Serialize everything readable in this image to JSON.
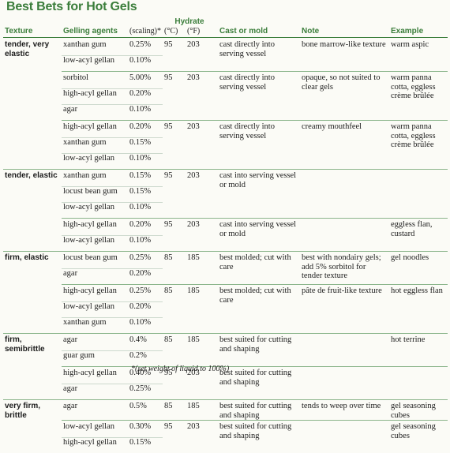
{
  "title": "Best Bets for Hot Gels",
  "headers": {
    "hydrate": "Hydrate",
    "texture": "Texture",
    "gelling": "Gelling agents",
    "scaling": "(scaling)*",
    "c": "(°C)",
    "f": "(°F)",
    "cast": "Cast or mold",
    "note": "Note",
    "example": "Example"
  },
  "groups": [
    {
      "texture": "tender, very elastic",
      "rows": [
        [
          "xanthan gum",
          "0.25%"
        ],
        [
          "low-acyl gellan",
          "0.10%"
        ]
      ],
      "c": "95",
      "f": "203",
      "cast": "cast directly into serving vessel",
      "note": "bone marrow-like texture",
      "example": "warm aspic"
    },
    {
      "texture": "",
      "rows": [
        [
          "sorbitol",
          "5.00%"
        ],
        [
          "high-acyl gellan",
          "0.20%"
        ],
        [
          "agar",
          "0.10%"
        ]
      ],
      "c": "95",
      "f": "203",
      "cast": "cast directly into serving vessel",
      "note": "opaque, so not suited to clear gels",
      "example": "warm panna cotta, eggless crème brûlée"
    },
    {
      "texture": "",
      "rows": [
        [
          "high-acyl gellan",
          "0.20%"
        ],
        [
          "xanthan gum",
          "0.15%"
        ],
        [
          "low-acyl gellan",
          "0.10%"
        ]
      ],
      "c": "95",
      "f": "203",
      "cast": "cast directly into serving vessel",
      "note": "creamy mouthfeel",
      "example": "warm panna cotta, eggless crème brûlée"
    },
    {
      "texture": "tender, elastic",
      "rows": [
        [
          "xanthan gum",
          "0.15%"
        ],
        [
          "locust bean gum",
          "0.15%"
        ],
        [
          "low-acyl gellan",
          "0.10%"
        ]
      ],
      "c": "95",
      "f": "203",
      "cast": "cast into serving vessel or mold",
      "note": "",
      "example": ""
    },
    {
      "texture": "",
      "rows": [
        [
          "high-acyl gellan",
          "0.20%"
        ],
        [
          "low-acyl gellan",
          "0.10%"
        ]
      ],
      "c": "95",
      "f": "203",
      "cast": "cast into serving vessel or mold",
      "note": "",
      "example": "eggless flan, custard"
    },
    {
      "texture": "firm, elastic",
      "rows": [
        [
          "locust bean gum",
          "0.25%"
        ],
        [
          "agar",
          "0.20%"
        ]
      ],
      "c": "85",
      "f": "185",
      "cast": "best molded; cut with care",
      "note": "best with nondairy gels; add 5% sorbitol for tender texture",
      "example": "gel noodles"
    },
    {
      "texture": "",
      "rows": [
        [
          "high-acyl gellan",
          "0.25%"
        ],
        [
          "low-acyl gellan",
          "0.20%"
        ],
        [
          "xanthan gum",
          "0.10%"
        ]
      ],
      "c": "85",
      "f": "185",
      "cast": "best molded; cut with care",
      "note": "pâte de fruit-like texture",
      "example": "hot eggless flan"
    },
    {
      "texture": "firm, semibrittle",
      "rows": [
        [
          "agar",
          "0.4%"
        ],
        [
          "guar gum",
          "0.2%"
        ]
      ],
      "c": "85",
      "f": "185",
      "cast": "best suited for cutting and shaping",
      "note": "",
      "example": "hot terrine"
    },
    {
      "texture": "",
      "rows": [
        [
          "high-acyl gellan",
          "0.40%"
        ],
        [
          "agar",
          "0.25%"
        ]
      ],
      "c": "95",
      "f": "203",
      "cast": "best suited for cutting and shaping",
      "note": "",
      "example": ""
    },
    {
      "texture": "very firm, brittle",
      "rows": [
        [
          "agar",
          "0.5%"
        ]
      ],
      "c": "85",
      "f": "185",
      "cast": "best suited for cutting and shaping",
      "note": "tends to weep over time",
      "example": "gel seasoning cubes"
    },
    {
      "texture": "",
      "rows": [
        [
          "low-acyl gellan",
          "0.30%"
        ],
        [
          "high-acyl gellan",
          "0.15%"
        ]
      ],
      "c": "95",
      "f": "203",
      "cast": "best suited for cutting and shaping",
      "note": "",
      "example": "gel seasoning cubes"
    }
  ],
  "footnote": "*(set weight of liquid to 100%)"
}
